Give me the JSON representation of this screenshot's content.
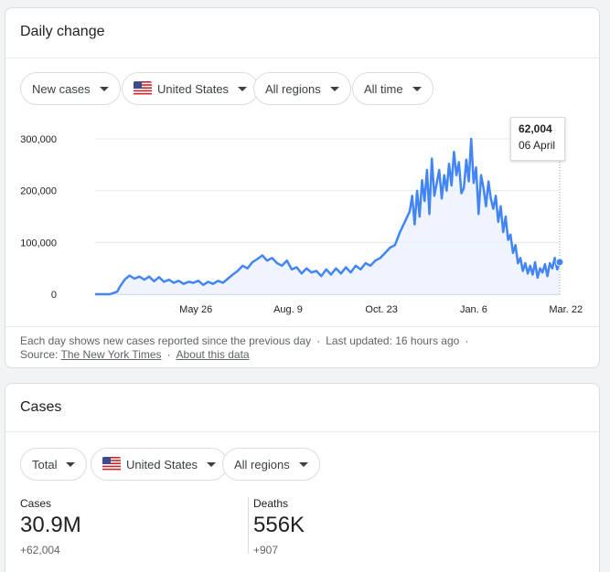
{
  "daily_card": {
    "title": "Daily change",
    "filters": {
      "metric": "New cases",
      "country": "United States",
      "region": "All regions",
      "period": "All time"
    },
    "tooltip": {
      "value": "62,004",
      "date": "06 April"
    },
    "footnote": {
      "text": "Each day shows new cases reported since the previous day",
      "updated": "Last updated: 16 hours ago",
      "source_label": "Source:",
      "source_link": "The New York Times",
      "about_link": "About this data"
    }
  },
  "chart_data": {
    "type": "area",
    "title": "",
    "xlabel": "",
    "ylabel": "",
    "ylim": [
      0,
      300000
    ],
    "yticks": [
      0,
      100000,
      200000,
      300000
    ],
    "ytick_labels": [
      "0",
      "100,000",
      "200,000",
      "300,000"
    ],
    "x_range_days": [
      0,
      378
    ],
    "xticks": [
      {
        "day": 82,
        "label": "May 26"
      },
      {
        "day": 157,
        "label": "Aug. 9"
      },
      {
        "day": 233,
        "label": "Oct. 23"
      },
      {
        "day": 308,
        "label": "Jan. 6"
      },
      {
        "day": 383,
        "label": "Mar. 22"
      }
    ],
    "line_color": "#4285f4",
    "fill_color": "#e8f0fe",
    "series": [
      {
        "name": "New cases",
        "x": [
          0,
          6,
          12,
          18,
          20,
          24,
          28,
          32,
          36,
          40,
          44,
          48,
          52,
          56,
          60,
          64,
          68,
          72,
          76,
          80,
          84,
          88,
          92,
          96,
          100,
          104,
          108,
          112,
          116,
          120,
          124,
          128,
          132,
          136,
          140,
          144,
          148,
          152,
          156,
          160,
          164,
          168,
          172,
          176,
          180,
          184,
          188,
          192,
          196,
          200,
          204,
          208,
          212,
          216,
          220,
          224,
          228,
          232,
          236,
          240,
          244,
          248,
          252,
          256,
          258,
          260,
          262,
          264,
          266,
          268,
          270,
          272,
          274,
          276,
          278,
          280,
          282,
          284,
          286,
          288,
          290,
          292,
          294,
          296,
          298,
          300,
          302,
          304,
          306,
          308,
          310,
          312,
          314,
          316,
          318,
          320,
          322,
          324,
          326,
          328,
          330,
          332,
          334,
          336,
          338,
          340,
          342,
          344,
          346,
          348,
          350,
          352,
          354,
          356,
          358,
          360,
          362,
          364,
          366,
          368,
          370,
          372,
          374,
          376,
          378
        ],
        "values": [
          0,
          0,
          0,
          5000,
          14000,
          28000,
          36000,
          30000,
          34000,
          28000,
          34000,
          25000,
          33000,
          24000,
          28000,
          22000,
          26000,
          20000,
          24000,
          22000,
          26000,
          18000,
          24000,
          20000,
          26000,
          22000,
          30000,
          38000,
          45000,
          55000,
          50000,
          62000,
          68000,
          75000,
          65000,
          70000,
          60000,
          55000,
          65000,
          48000,
          52000,
          40000,
          50000,
          42000,
          45000,
          35000,
          48000,
          38000,
          50000,
          40000,
          52000,
          42000,
          55000,
          48000,
          60000,
          55000,
          65000,
          70000,
          80000,
          90000,
          95000,
          120000,
          140000,
          160000,
          190000,
          135000,
          200000,
          150000,
          220000,
          180000,
          240000,
          155000,
          262000,
          190000,
          215000,
          240000,
          185000,
          230000,
          200000,
          252000,
          210000,
          275000,
          230000,
          255000,
          195000,
          205000,
          260000,
          218000,
          300000,
          215000,
          245000,
          155000,
          230000,
          205000,
          170000,
          218000,
          185000,
          165000,
          190000,
          140000,
          170000,
          120000,
          150000,
          105000,
          115000,
          80000,
          95000,
          60000,
          70000,
          45000,
          60000,
          40000,
          55000,
          38000,
          62000,
          32000,
          50000,
          42000,
          58000,
          35000,
          60000,
          50000,
          70000,
          48000,
          62004
        ]
      }
    ]
  },
  "cases_card": {
    "title": "Cases",
    "filters": {
      "type": "Total",
      "country": "United States",
      "region": "All regions"
    },
    "cases": {
      "label": "Cases",
      "value": "30.9M",
      "delta": "+62,004"
    },
    "deaths": {
      "label": "Deaths",
      "value": "556K",
      "delta": "+907"
    }
  }
}
